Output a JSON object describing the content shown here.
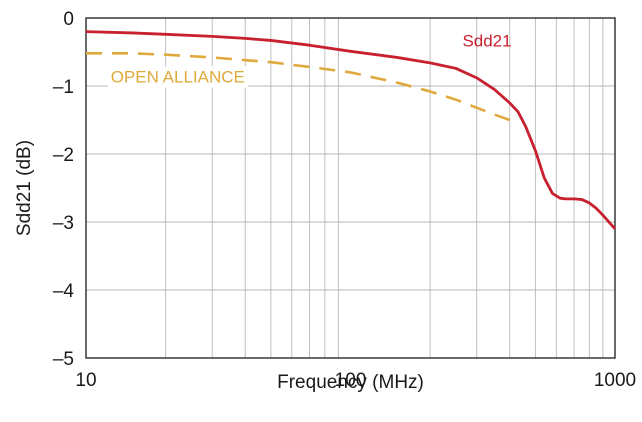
{
  "chart_data": {
    "type": "line",
    "title": "",
    "xlabel": "Frequency (MHz)",
    "ylabel": "Sdd21 (dB)",
    "xscale": "log",
    "xlim": [
      10,
      1000
    ],
    "ylim": [
      -5,
      0
    ],
    "x_ticks": [
      "10",
      "100",
      "1000"
    ],
    "y_ticks": [
      "0",
      "–1",
      "–2",
      "–3",
      "–4",
      "–5"
    ],
    "grid": true,
    "series": [
      {
        "name": "Sdd21",
        "color": "#c8202f",
        "style": "solid",
        "points": [
          [
            10,
            -0.2
          ],
          [
            15,
            -0.22
          ],
          [
            20,
            -0.24
          ],
          [
            30,
            -0.27
          ],
          [
            40,
            -0.3
          ],
          [
            50,
            -0.33
          ],
          [
            70,
            -0.4
          ],
          [
            100,
            -0.49
          ],
          [
            150,
            -0.58
          ],
          [
            200,
            -0.66
          ],
          [
            250,
            -0.74
          ],
          [
            300,
            -0.88
          ],
          [
            350,
            -1.05
          ],
          [
            400,
            -1.25
          ],
          [
            430,
            -1.38
          ],
          [
            460,
            -1.6
          ],
          [
            500,
            -1.95
          ],
          [
            540,
            -2.35
          ],
          [
            580,
            -2.58
          ],
          [
            620,
            -2.65
          ],
          [
            650,
            -2.66
          ],
          [
            700,
            -2.66
          ],
          [
            750,
            -2.67
          ],
          [
            800,
            -2.72
          ],
          [
            850,
            -2.8
          ],
          [
            900,
            -2.9
          ],
          [
            1000,
            -3.1
          ]
        ]
      },
      {
        "name": "OPEN ALLIANCE",
        "color": "#e0a93c",
        "style": "dashed",
        "points": [
          [
            10,
            -0.52
          ],
          [
            15,
            -0.52
          ],
          [
            20,
            -0.54
          ],
          [
            30,
            -0.58
          ],
          [
            40,
            -0.62
          ],
          [
            50,
            -0.65
          ],
          [
            70,
            -0.72
          ],
          [
            100,
            -0.8
          ],
          [
            150,
            -0.95
          ],
          [
            200,
            -1.08
          ],
          [
            250,
            -1.2
          ],
          [
            300,
            -1.32
          ],
          [
            350,
            -1.42
          ],
          [
            400,
            -1.5
          ],
          [
            420,
            -1.53
          ]
        ]
      }
    ]
  }
}
